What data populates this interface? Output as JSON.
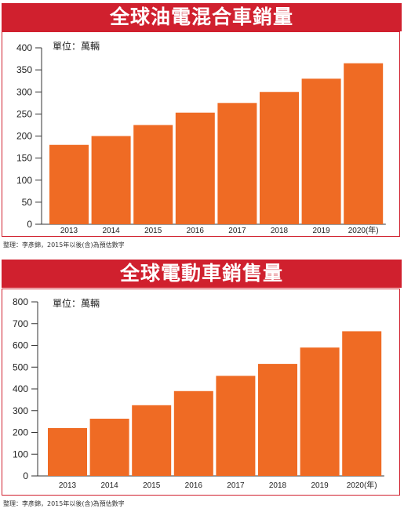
{
  "charts": [
    {
      "title": "全球油電混合車銷量",
      "unit": "單位：萬輛",
      "note": "整理：李彥錦，2015年以後(含)為預估數字"
    },
    {
      "title": "全球電動車銷售量",
      "unit": "單位：萬輛",
      "note": "整理：李彥錦，2015年以後(含)為預估數字"
    }
  ],
  "colors": {
    "bar": "#ef6b24",
    "title_bg": "#d0202e",
    "axis": "#333333"
  },
  "chart_data": [
    {
      "type": "bar",
      "title": "全球油電混合車銷量",
      "ylabel": "單位：萬輛",
      "categories": [
        "2013",
        "2014",
        "2015",
        "2016",
        "2017",
        "2018",
        "2019",
        "2020(年)"
      ],
      "values": [
        180,
        200,
        225,
        253,
        275,
        300,
        330,
        365
      ],
      "ylim": [
        0,
        400
      ],
      "yticks": [
        0,
        50,
        100,
        150,
        200,
        250,
        300,
        350,
        400
      ],
      "grid": false
    },
    {
      "type": "bar",
      "title": "全球電動車銷售量",
      "ylabel": "單位：萬輛",
      "categories": [
        "2013",
        "2014",
        "2015",
        "2016",
        "2017",
        "2018",
        "2019",
        "2020(年)"
      ],
      "values": [
        220,
        263,
        325,
        390,
        460,
        515,
        590,
        665
      ],
      "ylim": [
        0,
        800
      ],
      "yticks": [
        0,
        100,
        200,
        300,
        400,
        500,
        600,
        700,
        800
      ],
      "grid": false
    }
  ]
}
